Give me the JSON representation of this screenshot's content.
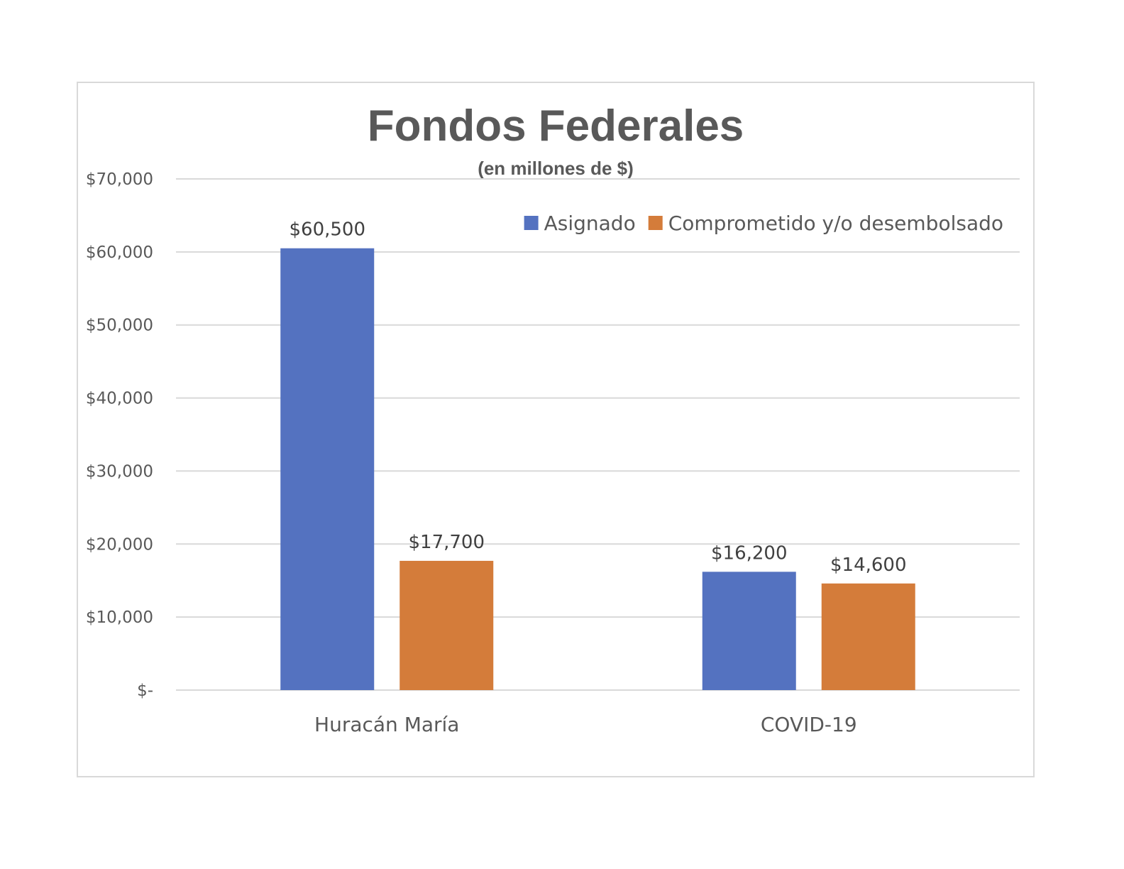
{
  "chart_data": {
    "type": "bar",
    "title": "Fondos Federales",
    "subtitle": "(en millones de $)",
    "categories": [
      "Huracán María",
      "COVID-19"
    ],
    "series": [
      {
        "name": "Asignado",
        "color": "#5472c0",
        "values": [
          60500,
          16200
        ],
        "labels": [
          "$60,500",
          "$16,200"
        ]
      },
      {
        "name": "Comprometido y/o desembolsado",
        "color": "#d47c3a",
        "values": [
          17700,
          14600
        ],
        "labels": [
          "$17,700",
          "$14,600"
        ]
      }
    ],
    "ylim": [
      0,
      70000
    ],
    "yticks": [
      0,
      10000,
      20000,
      30000,
      40000,
      50000,
      60000,
      70000
    ],
    "ytick_labels": [
      "$-",
      "$10,000",
      "$20,000",
      "$30,000",
      "$40,000",
      "$50,000",
      "$60,000",
      "$70,000"
    ],
    "grid": true,
    "legend": "top-right"
  }
}
